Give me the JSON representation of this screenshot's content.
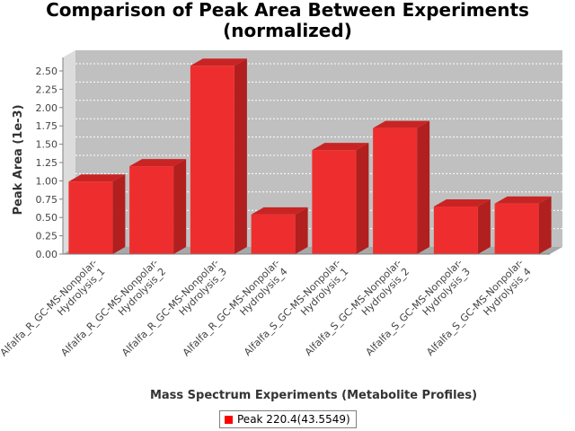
{
  "chart_data": {
    "type": "bar",
    "title": "Comparison of Peak Area Between Experiments (normalized)",
    "title_lines": [
      "Comparison of Peak Area Between Experiments",
      "(normalized)"
    ],
    "xlabel": "Mass Spectrum Experiments (Metabolite Profiles)",
    "ylabel": "Peak Area (1e-3)",
    "ylim": [
      0,
      2.5
    ],
    "yticks": [
      "0.00",
      "0.25",
      "0.50",
      "0.75",
      "1.00",
      "1.25",
      "1.50",
      "1.75",
      "2.00",
      "2.25",
      "2.50"
    ],
    "categories": [
      "Alfalfa_R_GC-MS-Nonpolar-Hydrolysis_1",
      "Alfalfa_R_GC-MS-Nonpolar-Hydrolysis_2",
      "Alfalfa_R_GC-MS-Nonpolar-Hydrolysis_3",
      "Alfalfa_R_GC-MS-Nonpolar-Hydrolysis_4",
      "Alfalfa_S_GC-MS-Nonpolar-Hydrolysis_1",
      "Alfalfa_S_GC-MS-Nonpolar-Hydrolysis_2",
      "Alfalfa_S_GC-MS-Nonpolar-Hydrolysis_3",
      "Alfalfa_S_GC-MS-Nonpolar-Hydrolysis_4"
    ],
    "category_lines": [
      [
        "Alfalfa_R_GC-MS-Nonpolar-",
        "Hydrolysis_1"
      ],
      [
        "Alfalfa_R_GC-MS-Nonpolar-",
        "Hydrolysis_2"
      ],
      [
        "Alfalfa_R_GC-MS-Nonpolar-",
        "Hydrolysis_3"
      ],
      [
        "Alfalfa_R_GC-MS-Nonpolar-",
        "Hydrolysis_4"
      ],
      [
        "Alfalfa_S_GC-MS-Nonpolar-",
        "Hydrolysis_1"
      ],
      [
        "Alfalfa_S_GC-MS-Nonpolar-",
        "Hydrolysis_2"
      ],
      [
        "Alfalfa_S_GC-MS-Nonpolar-",
        "Hydrolysis_3"
      ],
      [
        "Alfalfa_S_GC-MS-Nonpolar-",
        "Hydrolysis_4"
      ]
    ],
    "series": [
      {
        "name": "Peak 220.4(43.5549)",
        "values": [
          0.99,
          1.2,
          2.57,
          0.54,
          1.42,
          1.72,
          0.65,
          0.69
        ]
      }
    ],
    "grid": true,
    "legend_position": "bottom",
    "colors": {
      "bar_front": "#ee2e2e",
      "bar_side": "#b11f1f",
      "bar_top": "#c92424",
      "plot_back": "#c0c0c0",
      "plot_wall": "#dcdcdc",
      "plot_floor": "#a8a8a8",
      "gridline": "#ffffff"
    }
  }
}
